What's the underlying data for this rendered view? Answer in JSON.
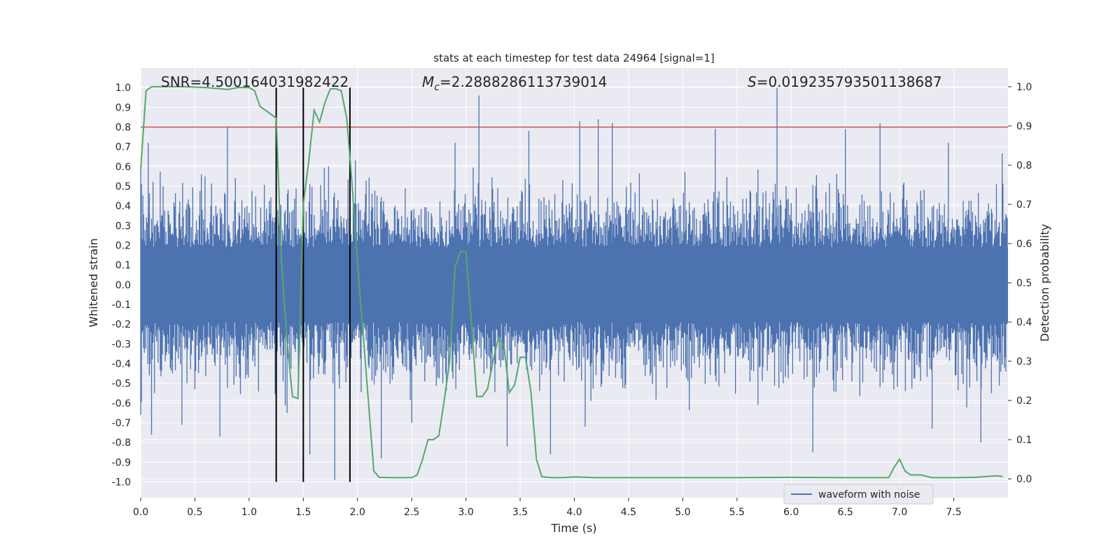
{
  "chart_data": {
    "type": "line",
    "title": "stats at each timestep for test data 24964 [signal=1]",
    "xlabel": "Time (s)",
    "ylabel_left": "Whitened strain",
    "ylabel_right": "Detection probability",
    "xlim": [
      0.0,
      8.0
    ],
    "ylim_left": [
      -1.08,
      1.1
    ],
    "ylim_right": [
      -0.048,
      1.048
    ],
    "x_ticks": [
      0.0,
      0.5,
      1.0,
      1.5,
      2.0,
      2.5,
      3.0,
      3.5,
      4.0,
      4.5,
      5.0,
      5.5,
      6.0,
      6.5,
      7.0,
      7.5
    ],
    "x_tick_labels": [
      "0.0",
      "0.5",
      "1.0",
      "1.5",
      "2.0",
      "2.5",
      "3.0",
      "3.5",
      "4.0",
      "4.5",
      "5.0",
      "5.5",
      "6.0",
      "6.5",
      "7.0",
      "7.5"
    ],
    "y_left_ticks": [
      1.0,
      0.9,
      0.8,
      0.7,
      0.6,
      0.5,
      0.4,
      0.3,
      0.2,
      0.1,
      0.0,
      -0.1,
      -0.2,
      -0.3,
      -0.4,
      -0.5,
      -0.6,
      -0.7,
      -0.8,
      -0.9,
      -1.0
    ],
    "y_left_tick_labels": [
      "1.0",
      "0.9",
      "0.8",
      "0.7",
      "0.6",
      "0.5",
      "0.4",
      "0.3",
      "0.2",
      "0.1",
      "0.0",
      "-0.1",
      "-0.2",
      "-0.3",
      "-0.4",
      "-0.5",
      "-0.6",
      "-0.7",
      "-0.8",
      "-0.9",
      "-1.0"
    ],
    "y_right_ticks": [
      1.0,
      0.9,
      0.8,
      0.7,
      0.6,
      0.5,
      0.4,
      0.3,
      0.2,
      0.1,
      0.0
    ],
    "y_right_tick_labels": [
      "1.0",
      "0.9",
      "0.8",
      "0.7",
      "0.6",
      "0.5",
      "0.4",
      "0.3",
      "0.2",
      "0.1",
      "0.0"
    ],
    "annotations": {
      "snr": "SNR=4.500164031982422",
      "mc_symbol": "M",
      "mc_sub": "c",
      "mc_value": "=2.2888286113739014",
      "s_symbol": "S",
      "s_value": "=0.019235793501138687"
    },
    "threshold": {
      "value": 0.8,
      "axis": "left",
      "color": "#c44e52"
    },
    "vertical_lines": [
      1.25,
      1.5,
      1.93
    ],
    "vline_range_left": [
      -1.0,
      1.0
    ],
    "waveform": {
      "name": "waveform with noise",
      "color": "#4c72b0",
      "sample_rate": 2048,
      "core_amplitude": 0.19,
      "typical_amplitude": 0.42,
      "peak_samples": [
        [
          0.0,
          0.6
        ],
        [
          0.0,
          -0.66
        ],
        [
          0.07,
          0.72
        ],
        [
          0.1,
          -0.76
        ],
        [
          0.38,
          -0.71
        ],
        [
          0.8,
          0.8
        ],
        [
          0.73,
          -0.77
        ],
        [
          1.25,
          -0.8
        ],
        [
          1.35,
          -0.65
        ],
        [
          1.56,
          -0.86
        ],
        [
          1.79,
          -0.99
        ],
        [
          2.22,
          -0.88
        ],
        [
          2.5,
          -0.7
        ],
        [
          3.12,
          0.96
        ],
        [
          3.38,
          -0.82
        ],
        [
          3.58,
          0.78
        ],
        [
          3.78,
          -0.86
        ],
        [
          4.05,
          0.83
        ],
        [
          4.22,
          0.84
        ],
        [
          4.35,
          0.82
        ],
        [
          5.3,
          0.79
        ],
        [
          5.87,
          1.0
        ],
        [
          6.2,
          -0.85
        ],
        [
          6.5,
          0.79
        ],
        [
          6.82,
          0.82
        ],
        [
          7.3,
          -0.73
        ],
        [
          7.75,
          -0.8
        ],
        [
          7.45,
          0.72
        ],
        [
          2.9,
          0.72
        ],
        [
          4.1,
          -0.72
        ]
      ]
    },
    "detection_probability": {
      "name": "detection probability",
      "color": "#55a868",
      "x": [
        0.0,
        0.05,
        0.1,
        0.2,
        0.4,
        0.6,
        0.8,
        0.9,
        1.0,
        1.05,
        1.1,
        1.2,
        1.25,
        1.3,
        1.35,
        1.4,
        1.45,
        1.5,
        1.55,
        1.6,
        1.65,
        1.7,
        1.75,
        1.8,
        1.85,
        1.9,
        1.95,
        2.0,
        2.1,
        2.15,
        2.2,
        2.3,
        2.5,
        2.55,
        2.6,
        2.65,
        2.7,
        2.75,
        2.8,
        2.85,
        2.9,
        2.95,
        3.0,
        3.05,
        3.1,
        3.15,
        3.2,
        3.25,
        3.3,
        3.35,
        3.4,
        3.45,
        3.5,
        3.55,
        3.6,
        3.65,
        3.7,
        3.75,
        3.8,
        3.9,
        4.0,
        4.2,
        4.5,
        4.8,
        5.0,
        5.5,
        6.0,
        6.5,
        6.85,
        6.9,
        6.95,
        7.0,
        7.05,
        7.1,
        7.2,
        7.3,
        7.5,
        7.7,
        7.8,
        7.9,
        7.95
      ],
      "y": [
        0.79,
        0.99,
        1.0,
        1.0,
        1.0,
        0.998,
        0.993,
        0.998,
        0.998,
        0.99,
        0.95,
        0.93,
        0.92,
        0.55,
        0.35,
        0.21,
        0.205,
        0.7,
        0.81,
        0.94,
        0.91,
        0.96,
        0.995,
        0.995,
        0.99,
        0.92,
        0.75,
        0.55,
        0.2,
        0.02,
        0.004,
        0.003,
        0.003,
        0.01,
        0.05,
        0.1,
        0.1,
        0.11,
        0.2,
        0.3,
        0.54,
        0.58,
        0.58,
        0.4,
        0.21,
        0.21,
        0.23,
        0.3,
        0.36,
        0.34,
        0.22,
        0.24,
        0.31,
        0.31,
        0.22,
        0.05,
        0.006,
        0.004,
        0.003,
        0.003,
        0.005,
        0.003,
        0.003,
        0.003,
        0.003,
        0.003,
        0.004,
        0.003,
        0.003,
        0.003,
        0.03,
        0.05,
        0.02,
        0.01,
        0.01,
        0.003,
        0.003,
        0.004,
        0.006,
        0.008,
        0.006
      ]
    },
    "legend": {
      "entries": [
        "waveform with noise"
      ],
      "position": "lower-right"
    },
    "grid": true
  }
}
